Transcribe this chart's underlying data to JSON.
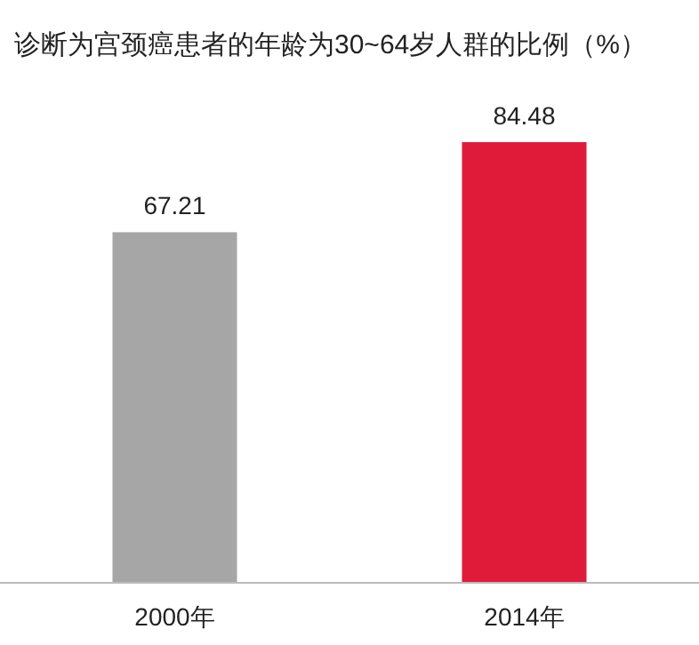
{
  "chart_data": {
    "type": "bar",
    "title": "诊断为宫颈癌患者的年龄为30~64岁人群的比例（%）",
    "categories": [
      "2000年",
      "2014年"
    ],
    "values": [
      67.21,
      84.48
    ],
    "colors": [
      "#a6a6a6",
      "#e01b3a"
    ],
    "data_labels": true
  }
}
